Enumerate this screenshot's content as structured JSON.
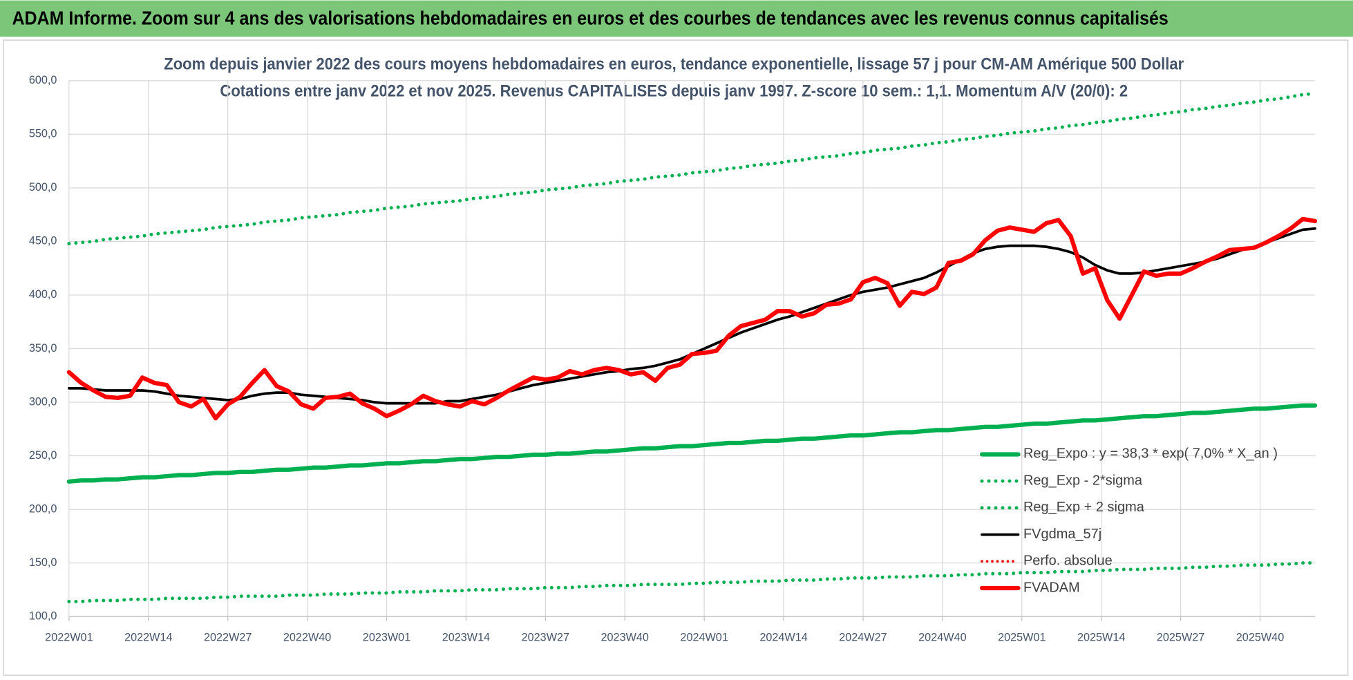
{
  "header": "ADAM Informe. Zoom sur 4 ans des valorisations hebdomadaires en euros et des courbes de tendances avec les revenus connus capitalisés",
  "chart_data": {
    "type": "line",
    "title": "Zoom depuis janvier 2022 des cours moyens hebdomadaires en euros, tendance exponentielle, lissage 57 j pour CM-AM Amérique 500 Dollar",
    "subtitle": "Cotations entre janv 2022 et nov 2025. Revenus CAPITALISES depuis janv 1997. Z-score 10 sem.: 1,1. Momentum A/V (20/0): 2",
    "x": [
      0,
      2,
      4,
      6,
      8,
      10,
      12,
      14,
      16,
      18,
      20,
      22,
      24,
      26,
      28,
      30,
      32,
      34,
      36,
      38,
      40,
      42,
      44,
      46,
      48,
      50,
      52,
      54,
      56,
      58,
      60,
      62,
      64,
      66,
      68,
      70,
      72,
      74,
      76,
      78,
      80,
      82,
      84,
      86,
      88,
      90,
      92,
      94,
      96,
      98,
      100,
      102,
      104,
      106,
      108,
      110,
      112,
      114,
      116,
      118,
      120,
      122,
      124,
      126,
      128,
      130,
      132,
      134,
      136,
      138,
      140,
      142,
      144,
      146,
      148,
      150,
      152,
      154,
      156,
      158,
      160,
      162,
      164,
      166,
      168,
      170,
      172,
      174,
      176,
      178,
      180,
      182,
      184,
      186,
      188,
      190,
      192,
      194,
      196,
      198,
      200,
      202,
      204
    ],
    "xlim": [
      0,
      204
    ],
    "xticks": [
      {
        "value": 0,
        "label": "2022W01"
      },
      {
        "value": 13,
        "label": "2022W14"
      },
      {
        "value": 26,
        "label": "2022W27"
      },
      {
        "value": 39,
        "label": "2022W40"
      },
      {
        "value": 52,
        "label": "2023W01"
      },
      {
        "value": 65,
        "label": "2023W14"
      },
      {
        "value": 78,
        "label": "2023W27"
      },
      {
        "value": 91,
        "label": "2023W40"
      },
      {
        "value": 104,
        "label": "2024W01"
      },
      {
        "value": 117,
        "label": "2024W14"
      },
      {
        "value": 130,
        "label": "2024W27"
      },
      {
        "value": 143,
        "label": "2024W40"
      },
      {
        "value": 156,
        "label": "2025W01"
      },
      {
        "value": 169,
        "label": "2025W14"
      },
      {
        "value": 182,
        "label": "2025W27"
      },
      {
        "value": 195,
        "label": "2025W40"
      }
    ],
    "ylim": [
      100,
      600
    ],
    "yticks": [
      {
        "value": 100,
        "label": "100,0"
      },
      {
        "value": 150,
        "label": "150,0"
      },
      {
        "value": 200,
        "label": "200,0"
      },
      {
        "value": 250,
        "label": "250,0"
      },
      {
        "value": 300,
        "label": "300,0"
      },
      {
        "value": 350,
        "label": "350,0"
      },
      {
        "value": 400,
        "label": "400,0"
      },
      {
        "value": 450,
        "label": "450,0"
      },
      {
        "value": 500,
        "label": "500,0"
      },
      {
        "value": 550,
        "label": "550,0"
      },
      {
        "value": 600,
        "label": "600,0"
      }
    ],
    "grid": true,
    "legend": "lower right",
    "series": [
      {
        "name": "Reg_Expo : y = 38,3 * exp( 7,0% *  X_an )",
        "color": "#00b050",
        "style": "solid",
        "linewidth": 5,
        "values": [
          226,
          227,
          227,
          228,
          228,
          229,
          230,
          230,
          231,
          232,
          232,
          233,
          234,
          234,
          235,
          235,
          236,
          237,
          237,
          238,
          239,
          239,
          240,
          241,
          241,
          242,
          243,
          243,
          244,
          245,
          245,
          246,
          247,
          247,
          248,
          249,
          249,
          250,
          251,
          251,
          252,
          252,
          253,
          254,
          254,
          255,
          256,
          257,
          257,
          258,
          259,
          259,
          260,
          261,
          262,
          262,
          263,
          264,
          264,
          265,
          266,
          266,
          267,
          268,
          269,
          269,
          270,
          271,
          272,
          272,
          273,
          274,
          274,
          275,
          276,
          277,
          277,
          278,
          279,
          280,
          280,
          281,
          282,
          283,
          283,
          284,
          285,
          286,
          287,
          287,
          288,
          289,
          290,
          290,
          291,
          292,
          293,
          294,
          294,
          295,
          296,
          297,
          297
        ]
      },
      {
        "name": "Reg_Exp - 2*sigma",
        "color": "#00b050",
        "style": "dotted",
        "linewidth": 4,
        "values": [
          114,
          114,
          115,
          115,
          115,
          116,
          116,
          116,
          117,
          117,
          117,
          117,
          118,
          118,
          119,
          119,
          119,
          119,
          120,
          120,
          120,
          121,
          121,
          121,
          122,
          122,
          122,
          123,
          123,
          123,
          124,
          124,
          124,
          125,
          125,
          125,
          126,
          126,
          126,
          127,
          127,
          127,
          128,
          128,
          129,
          129,
          129,
          130,
          130,
          130,
          130,
          131,
          131,
          132,
          132,
          132,
          133,
          133,
          133,
          134,
          134,
          134,
          135,
          135,
          136,
          136,
          136,
          137,
          137,
          137,
          138,
          138,
          138,
          139,
          139,
          140,
          140,
          140,
          141,
          141,
          141,
          142,
          142,
          142,
          143,
          143,
          144,
          144,
          144,
          145,
          145,
          145,
          146,
          146,
          147,
          147,
          148,
          148,
          148,
          149,
          149,
          150,
          150
        ]
      },
      {
        "name": "Reg_Exp + 2 sigma",
        "color": "#00b050",
        "style": "dotted",
        "linewidth": 4,
        "values": [
          448,
          449,
          450,
          452,
          453,
          454,
          455,
          457,
          458,
          459,
          460,
          461,
          463,
          464,
          465,
          466,
          468,
          469,
          470,
          472,
          473,
          474,
          475,
          477,
          478,
          479,
          481,
          482,
          483,
          485,
          486,
          487,
          488,
          490,
          491,
          492,
          494,
          495,
          496,
          498,
          499,
          500,
          502,
          503,
          504,
          506,
          507,
          508,
          510,
          511,
          512,
          514,
          515,
          516,
          518,
          519,
          521,
          522,
          523,
          525,
          526,
          528,
          529,
          530,
          532,
          533,
          535,
          536,
          537,
          539,
          540,
          542,
          543,
          545,
          546,
          548,
          549,
          551,
          552,
          553,
          555,
          556,
          558,
          559,
          561,
          562,
          564,
          565,
          567,
          568,
          570,
          571,
          573,
          574,
          576,
          577,
          579,
          580,
          582,
          583,
          585,
          587,
          588
        ]
      },
      {
        "name": "FVgdma_57j",
        "color": "#000000",
        "style": "solid",
        "linewidth": 3,
        "values": [
          313,
          313,
          312,
          311,
          311,
          311,
          311,
          310,
          308,
          306,
          305,
          304,
          303,
          302,
          303,
          306,
          308,
          309,
          309,
          307,
          306,
          305,
          304,
          303,
          302,
          300,
          299,
          299,
          299,
          299,
          299,
          301,
          301,
          303,
          305,
          307,
          310,
          313,
          316,
          318,
          320,
          322,
          324,
          326,
          328,
          329,
          331,
          332,
          334,
          337,
          340,
          345,
          350,
          355,
          360,
          365,
          369,
          373,
          377,
          380,
          384,
          388,
          392,
          396,
          400,
          403,
          405,
          407,
          410,
          413,
          416,
          421,
          427,
          433,
          439,
          443,
          445,
          446,
          446,
          446,
          445,
          443,
          440,
          435,
          428,
          423,
          420,
          420,
          421,
          423,
          425,
          427,
          429,
          431,
          434,
          438,
          442,
          445,
          449,
          453,
          457,
          461,
          462
        ]
      },
      {
        "name": "Perfo. absolue",
        "color": "#ff0000",
        "style": "dotted",
        "linewidth": 3,
        "values": [
          null,
          null,
          null,
          null,
          null,
          null,
          null,
          null,
          null,
          null,
          null,
          null,
          null,
          null,
          null,
          null,
          null,
          null,
          null,
          null,
          null,
          null,
          null,
          null,
          null,
          null,
          null,
          null,
          null,
          null,
          null,
          null,
          null,
          null,
          null,
          null,
          null,
          null,
          null,
          null,
          null,
          null,
          null,
          null,
          null,
          null,
          null,
          null,
          null,
          null,
          null,
          null,
          null,
          null,
          null,
          null,
          null,
          null,
          null,
          null,
          null,
          null,
          null,
          null,
          null,
          null,
          null,
          null,
          null,
          null,
          null,
          null,
          null,
          null,
          null,
          null,
          null,
          null,
          null,
          null,
          null,
          null,
          null,
          null,
          null,
          null,
          null,
          null,
          null,
          null,
          null,
          null,
          null,
          null,
          null,
          null,
          null,
          null,
          null,
          null,
          null,
          null,
          null
        ]
      },
      {
        "name": "FVADAM",
        "color": "#ff0000",
        "style": "solid",
        "linewidth": 5,
        "values": [
          328,
          318,
          311,
          305,
          304,
          306,
          323,
          318,
          316,
          300,
          296,
          303,
          285,
          298,
          305,
          318,
          330,
          315,
          310,
          298,
          294,
          304,
          305,
          308,
          299,
          294,
          287,
          292,
          298,
          306,
          301,
          298,
          296,
          301,
          298,
          304,
          311,
          317,
          323,
          321,
          323,
          329,
          326,
          330,
          332,
          330,
          326,
          328,
          320,
          332,
          335,
          345,
          346,
          348,
          362,
          371,
          374,
          377,
          385,
          385,
          380,
          383,
          391,
          392,
          396,
          412,
          416,
          411,
          390,
          403,
          401,
          407,
          430,
          432,
          438,
          451,
          460,
          463,
          461,
          459,
          467,
          470,
          455,
          420,
          425,
          395,
          378,
          400,
          422,
          418,
          420,
          420,
          425,
          431,
          436,
          442,
          443,
          444,
          449,
          455,
          462,
          471,
          469
        ]
      }
    ]
  }
}
